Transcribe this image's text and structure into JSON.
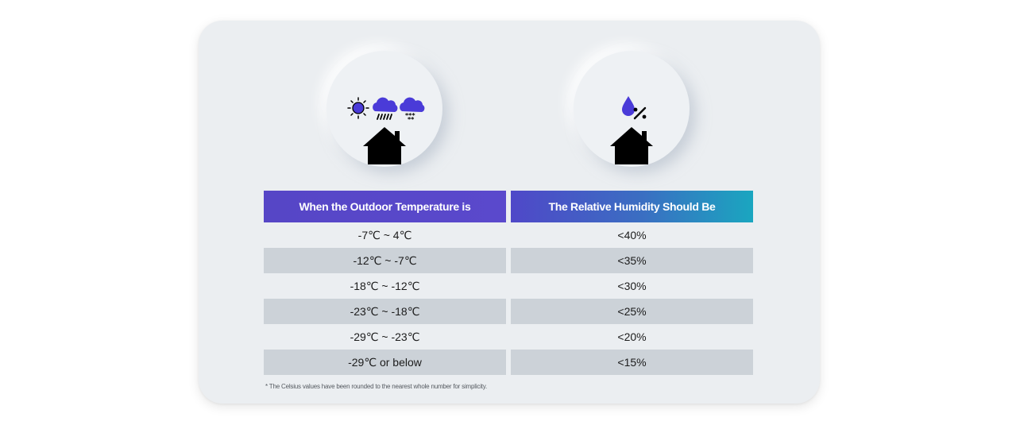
{
  "table": {
    "header_left": "When the Outdoor Temperature is",
    "header_right": "The Relative Humidity Should Be",
    "rows": [
      {
        "temperature": "-7℃ ~ 4℃",
        "humidity": "<40%"
      },
      {
        "temperature": "-12℃ ~ -7℃",
        "humidity": "<35%"
      },
      {
        "temperature": "-18℃ ~ -12℃",
        "humidity": "<30%"
      },
      {
        "temperature": "-23℃ ~ -18℃",
        "humidity": "<25%"
      },
      {
        "temperature": "-29℃ ~ -23℃",
        "humidity": "<20%"
      },
      {
        "temperature": "-29℃ or below",
        "humidity": "<15%"
      }
    ]
  },
  "footnote": "* The Celsius values have been rounded to the nearest whole number for simplicity.",
  "icons": {
    "left": [
      "sun-icon",
      "rain-cloud-icon",
      "snow-cloud-icon",
      "house-icon"
    ],
    "right": [
      "humidity-drop-icon",
      "house-icon"
    ]
  },
  "colors": {
    "accent_purple": "#5646c6",
    "accent_teal": "#1aa6c0",
    "row_shade": "#ccd2d8",
    "card_bg": "#ebeef1"
  }
}
